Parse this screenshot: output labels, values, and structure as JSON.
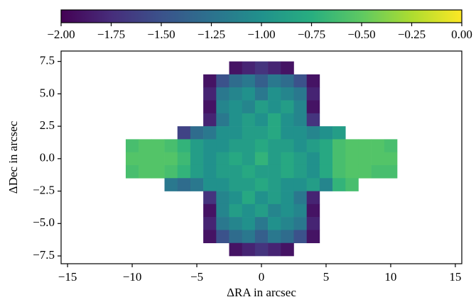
{
  "chart_data": {
    "type": "heatmap",
    "xlabel": "ΔRA in arcsec",
    "ylabel": "ΔDec in arcsec",
    "xlim": [
      -15.5,
      15.5
    ],
    "ylim": [
      -8.1,
      8.3
    ],
    "xticks": [
      {
        "value": -15,
        "label": "−15"
      },
      {
        "value": -10,
        "label": "−10"
      },
      {
        "value": -5,
        "label": "−5"
      },
      0,
      5,
      10,
      15
    ],
    "yticks": [
      {
        "value": -7.5,
        "label": "−7.5"
      },
      {
        "value": -5,
        "label": "−5.0"
      },
      {
        "value": -2.5,
        "label": "−2.5"
      },
      {
        "value": 0,
        "label": "0.0"
      },
      {
        "value": 2.5,
        "label": "2.5"
      },
      {
        "value": 5,
        "label": "5.0"
      },
      {
        "value": 7.5,
        "label": "7.5"
      }
    ],
    "colormap": "viridis",
    "clim": [
      -2,
      0
    ],
    "cticks": [
      {
        "value": -2,
        "label": "−2.00"
      },
      {
        "value": -1.75,
        "label": "−1.75"
      },
      {
        "value": -1.5,
        "label": "−1.50"
      },
      {
        "value": -1.25,
        "label": "−1.25"
      },
      {
        "value": -1,
        "label": "−1.00"
      },
      {
        "value": -0.75,
        "label": "−0.75"
      },
      {
        "value": -0.5,
        "label": "−0.50"
      },
      {
        "value": -0.25,
        "label": "−0.25"
      },
      {
        "value": 0,
        "label": "0.00"
      }
    ],
    "x": [
      -10,
      -9,
      -8,
      -7,
      -6,
      -5,
      -4,
      -3,
      -2,
      -1,
      0,
      1,
      2,
      3,
      4,
      5,
      6,
      7,
      8,
      9,
      10
    ],
    "y": [
      7,
      6,
      5,
      4,
      3,
      2,
      1,
      0,
      -1,
      -2,
      -3,
      -4,
      -5,
      -6,
      -7
    ],
    "values": [
      [
        null,
        null,
        null,
        null,
        null,
        null,
        null,
        null,
        -1.9,
        -1.8,
        -1.7,
        -1.8,
        -1.9,
        null,
        null,
        null,
        null,
        null,
        null,
        null,
        null
      ],
      [
        null,
        null,
        null,
        null,
        null,
        null,
        -1.9,
        -1.5,
        -1.3,
        -1.2,
        -1.4,
        -1.2,
        -1.3,
        -1.5,
        -1.9,
        null,
        null,
        null,
        null,
        null,
        null
      ],
      [
        null,
        null,
        null,
        null,
        null,
        null,
        -1.8,
        -1.2,
        -1.1,
        -1.0,
        -1.2,
        -1.0,
        -1.1,
        -1.2,
        -1.8,
        null,
        null,
        null,
        null,
        null,
        null
      ],
      [
        null,
        null,
        null,
        null,
        null,
        null,
        -1.9,
        -1.1,
        -1.0,
        -1.1,
        -0.9,
        -1.0,
        -0.9,
        -1.1,
        -1.9,
        null,
        null,
        null,
        null,
        null,
        null
      ],
      [
        null,
        null,
        null,
        null,
        null,
        null,
        -1.8,
        -1.2,
        -1.0,
        -0.9,
        -1.0,
        -0.8,
        -1.0,
        -1.1,
        -1.7,
        null,
        null,
        null,
        null,
        null,
        null
      ],
      [
        null,
        null,
        null,
        null,
        -1.6,
        -1.3,
        -1.2,
        -1.0,
        -1.0,
        -0.9,
        -0.9,
        -0.8,
        -1.0,
        -1.0,
        -1.1,
        -1.0,
        -0.9,
        null,
        null,
        null,
        null
      ],
      [
        -0.6,
        -0.55,
        -0.55,
        -0.6,
        -0.7,
        -0.9,
        -1.0,
        -1.0,
        -0.9,
        -0.9,
        -0.8,
        -0.9,
        -0.9,
        -1.0,
        -0.9,
        -0.8,
        -0.6,
        -0.55,
        -0.55,
        -0.55,
        -0.6
      ],
      [
        -0.55,
        -0.55,
        -0.55,
        -0.55,
        -0.65,
        -0.9,
        -1.0,
        -0.9,
        -0.8,
        -0.9,
        -0.7,
        -0.9,
        -0.8,
        -0.9,
        -1.0,
        -0.8,
        -0.6,
        -0.55,
        -0.55,
        -0.55,
        -0.55
      ],
      [
        -0.6,
        -0.55,
        -0.55,
        -0.6,
        -0.7,
        -0.9,
        -1.0,
        -0.9,
        -0.9,
        -0.8,
        -0.9,
        -0.9,
        -0.8,
        -0.9,
        -1.0,
        -0.8,
        -0.6,
        -0.55,
        -0.55,
        -0.6,
        -0.6
      ],
      [
        null,
        null,
        null,
        -1.2,
        -1.3,
        -1.2,
        -1.0,
        -1.0,
        -0.9,
        -0.9,
        -0.8,
        -0.9,
        -1.0,
        -1.0,
        -0.9,
        -1.1,
        -0.7,
        -0.6,
        null,
        null,
        null
      ],
      [
        null,
        null,
        null,
        null,
        null,
        null,
        -1.7,
        -1.1,
        -1.0,
        -0.8,
        -1.0,
        -0.9,
        -1.0,
        -1.2,
        -1.8,
        null,
        null,
        null,
        null,
        null,
        null
      ],
      [
        null,
        null,
        null,
        null,
        null,
        null,
        -1.9,
        -1.1,
        -0.9,
        -1.0,
        -0.9,
        -1.1,
        -1.0,
        -1.1,
        -1.9,
        null,
        null,
        null,
        null,
        null,
        null
      ],
      [
        null,
        null,
        null,
        null,
        null,
        null,
        -1.8,
        -1.2,
        -1.1,
        -1.0,
        -1.2,
        -1.0,
        -1.1,
        -1.2,
        -1.8,
        null,
        null,
        null,
        null,
        null,
        null
      ],
      [
        null,
        null,
        null,
        null,
        null,
        null,
        -1.9,
        -1.5,
        -1.3,
        -1.2,
        -1.4,
        -1.2,
        -1.3,
        -1.5,
        -1.9,
        null,
        null,
        null,
        null,
        null,
        null
      ],
      [
        null,
        null,
        null,
        null,
        null,
        null,
        null,
        null,
        -1.9,
        -1.8,
        -1.7,
        -1.8,
        -1.9,
        null,
        null,
        null,
        null,
        null,
        null,
        null,
        null
      ]
    ]
  }
}
